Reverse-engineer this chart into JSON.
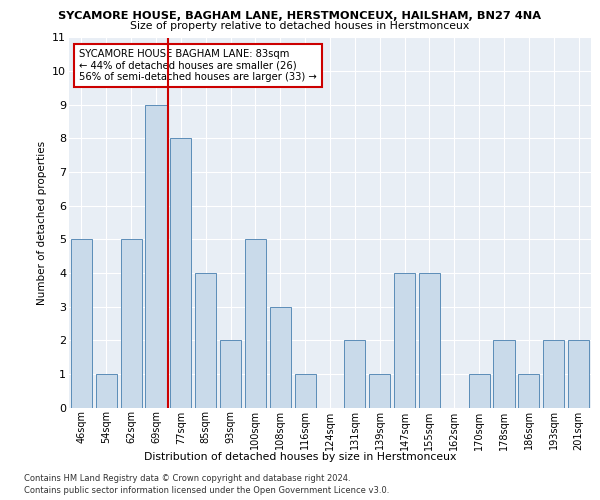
{
  "title1": "SYCAMORE HOUSE, BAGHAM LANE, HERSTMONCEUX, HAILSHAM, BN27 4NA",
  "title2": "Size of property relative to detached houses in Herstmonceux",
  "xlabel": "Distribution of detached houses by size in Herstmonceux",
  "ylabel": "Number of detached properties",
  "categories": [
    "46sqm",
    "54sqm",
    "62sqm",
    "69sqm",
    "77sqm",
    "85sqm",
    "93sqm",
    "100sqm",
    "108sqm",
    "116sqm",
    "124sqm",
    "131sqm",
    "139sqm",
    "147sqm",
    "155sqm",
    "162sqm",
    "170sqm",
    "178sqm",
    "186sqm",
    "193sqm",
    "201sqm"
  ],
  "values": [
    5,
    1,
    5,
    9,
    8,
    4,
    2,
    5,
    3,
    1,
    0,
    2,
    1,
    4,
    4,
    0,
    1,
    2,
    1,
    2,
    2
  ],
  "bar_color": "#c9daea",
  "bar_edge_color": "#5b8db8",
  "vline_color": "#cc0000",
  "ylim": [
    0,
    11
  ],
  "yticks": [
    0,
    1,
    2,
    3,
    4,
    5,
    6,
    7,
    8,
    9,
    10,
    11
  ],
  "annotation_title": "SYCAMORE HOUSE BAGHAM LANE: 83sqm",
  "annotation_line1": "← 44% of detached houses are smaller (26)",
  "annotation_line2": "56% of semi-detached houses are larger (33) →",
  "footer1": "Contains HM Land Registry data © Crown copyright and database right 2024.",
  "footer2": "Contains public sector information licensed under the Open Government Licence v3.0.",
  "plot_bg_color": "#e8eef5",
  "vline_x": 3.5
}
